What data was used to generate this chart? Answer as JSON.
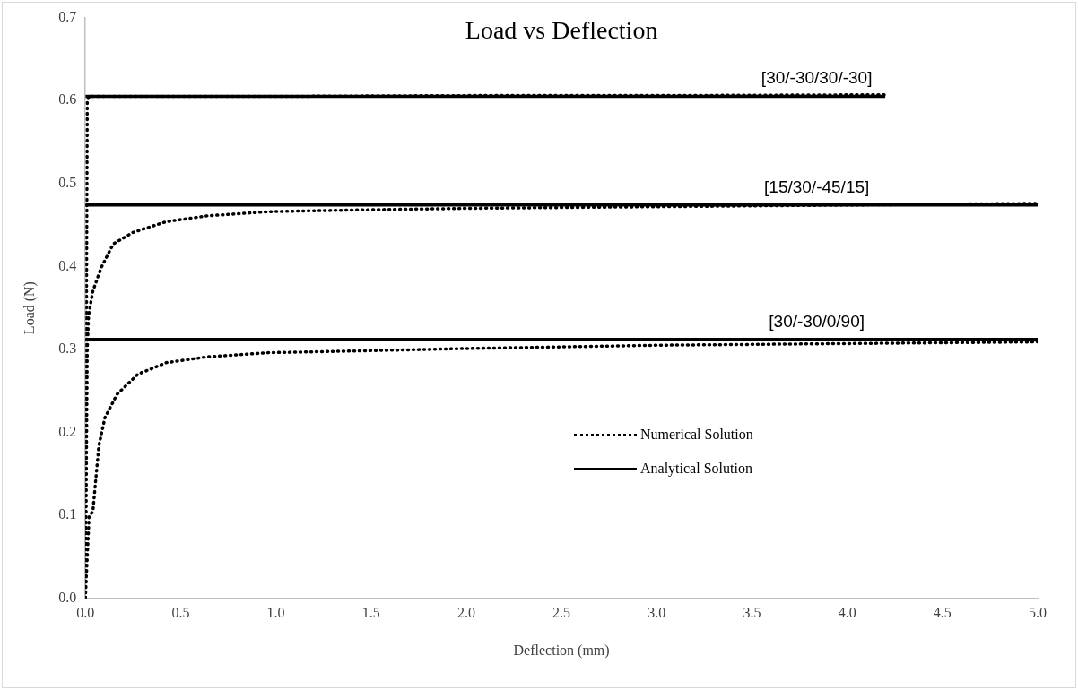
{
  "chart_data": {
    "type": "line",
    "title": "Load vs Deflection",
    "xlabel": "Deflection (mm)",
    "ylabel": "Load (N)",
    "xlim": [
      0,
      5
    ],
    "xticks": [
      {
        "value": 0,
        "label": "0.0"
      },
      {
        "value": 0.5,
        "label": "0.5"
      },
      {
        "value": 1,
        "label": "1.0"
      },
      {
        "value": 1.5,
        "label": "1.5"
      },
      {
        "value": 2,
        "label": "2.0"
      },
      {
        "value": 2.5,
        "label": "2.5"
      },
      {
        "value": 3,
        "label": "3.0"
      },
      {
        "value": 3.5,
        "label": "3.5"
      },
      {
        "value": 4,
        "label": "4.0"
      },
      {
        "value": 4.5,
        "label": "4.5"
      },
      {
        "value": 5,
        "label": "5.0"
      }
    ],
    "ylim": [
      0,
      0.7
    ],
    "yticks": [
      {
        "value": 0,
        "label": "0.0"
      },
      0.1,
      0.2,
      0.3,
      0.4,
      0.5,
      0.6,
      0.7
    ],
    "grid": false,
    "legend": "bottom right",
    "marker": "none",
    "series": [
      {
        "name": "Numerical Solution",
        "line_style": "dotted",
        "color": "#000000",
        "x": [
          0,
          0.005,
          0.01,
          0.02,
          0.04,
          1,
          2,
          3,
          4.2
        ],
        "values": [
          0,
          0.3,
          0.6,
          0.605,
          0.605,
          0.605,
          0.606,
          0.606,
          0.607
        ]
      },
      {
        "line_style": "dotted",
        "color": "#000000",
        "x": [
          0,
          0.005,
          0.01,
          0.017,
          0.039,
          0.082,
          0.146,
          0.25,
          0.425,
          0.64,
          0.96,
          1.41,
          2,
          3,
          4,
          5
        ],
        "values": [
          0,
          0.15,
          0.3,
          0.341,
          0.37,
          0.398,
          0.427,
          0.441,
          0.454,
          0.461,
          0.466,
          0.468,
          0.47,
          0.472,
          0.474,
          0.476
        ]
      },
      {
        "line_style": "dotted",
        "color": "#000000",
        "x": [
          0,
          0.01,
          0.02,
          0.039,
          0.071,
          0.103,
          0.167,
          0.275,
          0.425,
          0.64,
          0.96,
          1.41,
          2,
          3,
          4,
          5
        ],
        "values": [
          0,
          0.05,
          0.1,
          0.104,
          0.184,
          0.218,
          0.246,
          0.27,
          0.284,
          0.291,
          0.296,
          0.298,
          0.301,
          0.305,
          0.307,
          0.309
        ]
      },
      {
        "name": "Analytical Solution",
        "line_style": "solid",
        "color": "#000000",
        "x": [
          0,
          4.2
        ],
        "values": [
          0.605,
          0.605
        ]
      },
      {
        "line_style": "solid",
        "color": "#000000",
        "x": [
          0,
          5
        ],
        "values": [
          0.474,
          0.474
        ]
      },
      {
        "line_style": "solid",
        "color": "#000000",
        "x": [
          0,
          5
        ],
        "values": [
          0.312,
          0.312
        ]
      }
    ],
    "annotations": [
      {
        "text": "[30/-30/30/-30]",
        "y": 0.605
      },
      {
        "text": "[15/30/-45/15]",
        "y": 0.474
      },
      {
        "text": "[30/-30/0/90]",
        "y": 0.312
      }
    ]
  }
}
